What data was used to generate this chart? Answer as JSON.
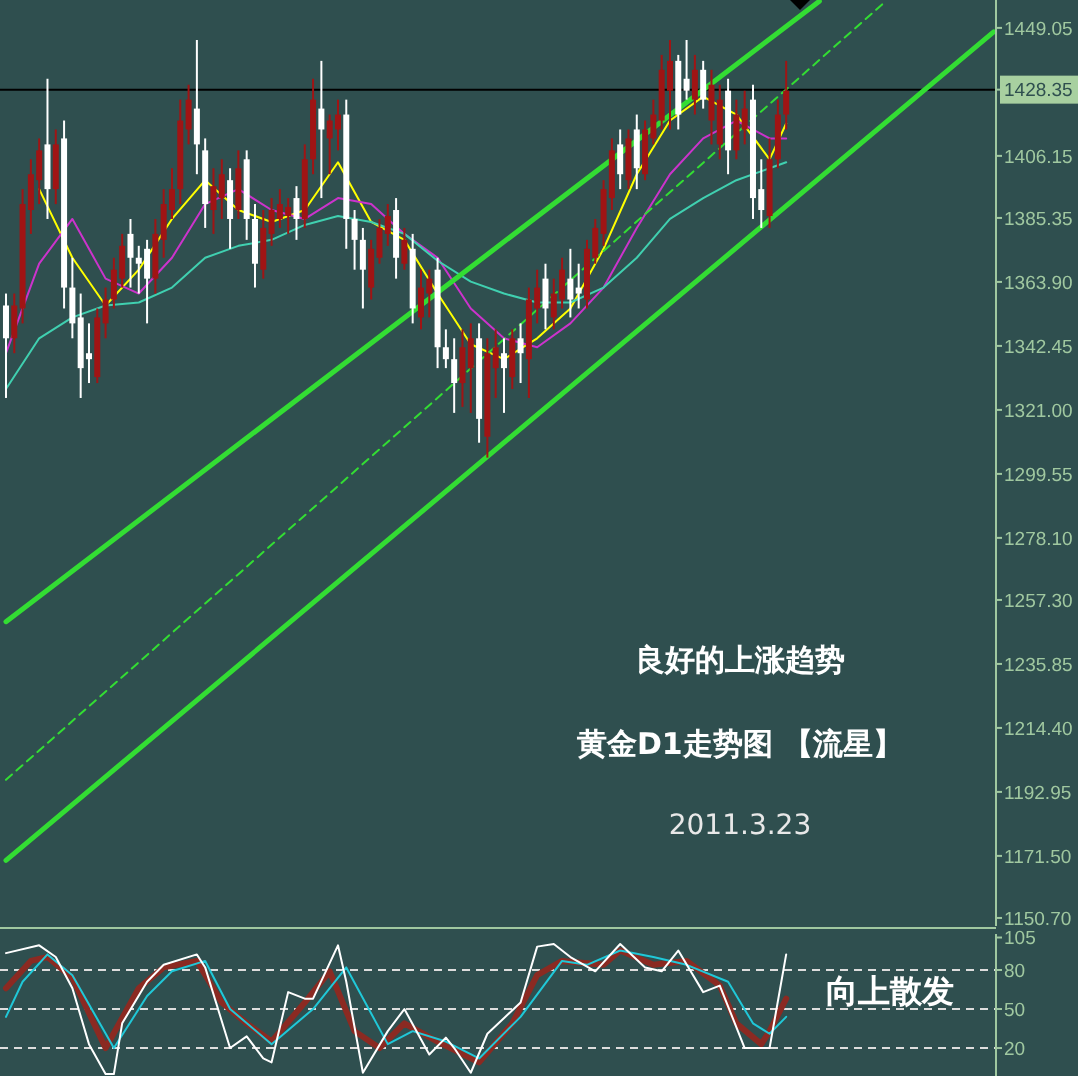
{
  "chart_data": [
    {
      "type": "candlestick",
      "tick_labels": "y",
      "colors": [
        "#ffffff",
        "#a01414",
        "#a01414",
        "#a01414",
        "#a01414",
        "#ffffff",
        "#a01414",
        "#ffffff",
        "#ffffff",
        "#ffffff",
        "#ffffff",
        "#a01414",
        "#a01414",
        "#a01414",
        "#a01414",
        "#ffffff",
        "#ffffff",
        "#ffffff",
        "#a01414",
        "#a01414",
        "#a01414",
        "#a01414",
        "#a01414",
        "#ffffff",
        "#ffffff",
        "#a01414",
        "#a01414",
        "#ffffff",
        "#a01414",
        "#ffffff",
        "#ffffff",
        "#a01414",
        "#a01414",
        "#a01414",
        "#a01414",
        "#ffffff",
        "#a01414",
        "#a01414",
        "#ffffff",
        "#a01414",
        "#a01414",
        "#ffffff",
        "#ffffff",
        "#ffffff",
        "#a01414",
        "#a01414",
        "#a01414",
        "#ffffff",
        "#a01414",
        "#ffffff",
        "#a01414",
        "#a01414",
        "#ffffff",
        "#ffffff",
        "#ffffff",
        "#a01414",
        "#a01414",
        "#ffffff",
        "#a01414",
        "#a01414",
        "#ffffff",
        "#a01414",
        "#ffffff",
        "#a01414",
        "#a01414",
        "#ffffff",
        "#a01414",
        "#a01414",
        "#ffffff",
        "#ffffff",
        "#a01414",
        "#a01414",
        "#a01414",
        "#a01414",
        "#ffffff",
        "#a01414",
        "#ffffff",
        "#a01414",
        "#a01414",
        "#a01414",
        "#a01414",
        "#ffffff",
        "#ffffff",
        "#a01414",
        "#ffffff",
        "#a01414",
        "#a01414",
        "#ffffff",
        "#a01414",
        "#a01414",
        "#ffffff",
        "#ffffff",
        "#a01414",
        "#a01414",
        "#a01414",
        null,
        null,
        null,
        null,
        null,
        null,
        null,
        null,
        null,
        null,
        null,
        null,
        null,
        null,
        null,
        null,
        null,
        null,
        null,
        null,
        null,
        null,
        null,
        null,
        null
      ],
      "categories": [
        null,
        null,
        null,
        null,
        null,
        null,
        null,
        null,
        null,
        null,
        null,
        null,
        null,
        null,
        null,
        null,
        null,
        null,
        null,
        null,
        null,
        null,
        null,
        null,
        null,
        null,
        null,
        null,
        null,
        null,
        null,
        null,
        null,
        null,
        null,
        null,
        null,
        null,
        null,
        null,
        null,
        null,
        null,
        null,
        null,
        null,
        null,
        null,
        null,
        null,
        null,
        null,
        null,
        null,
        null,
        null,
        null,
        null,
        null,
        null,
        null,
        null,
        null,
        null,
        null,
        null,
        null,
        null,
        null,
        null,
        null,
        null,
        null,
        null,
        null,
        null,
        null,
        null,
        null,
        null,
        null,
        null,
        null,
        null,
        null,
        null,
        null,
        null,
        null,
        null,
        null,
        null,
        null,
        null,
        null,
        null,
        null,
        null,
        null,
        null,
        null,
        null,
        null,
        null,
        null,
        null,
        null,
        null,
        null,
        null,
        null,
        null,
        null,
        null,
        null,
        null,
        null,
        null,
        null,
        null
      ],
      "ohlc": [
        [
          1356,
          1360,
          1325,
          1345
        ],
        [
          1345,
          1360,
          1340,
          1356
        ],
        [
          1355,
          1395,
          1350,
          1390
        ],
        [
          1388,
          1405,
          1380,
          1400
        ],
        [
          1398,
          1412,
          1390,
          1408
        ],
        [
          1410,
          1432,
          1385,
          1395
        ],
        [
          1395,
          1415,
          1390,
          1410
        ],
        [
          1412,
          1418,
          1355,
          1362
        ],
        [
          1362,
          1372,
          1345,
          1350
        ],
        [
          1352,
          1360,
          1325,
          1335
        ],
        [
          1340,
          1350,
          1330,
          1338
        ],
        [
          1332,
          1355,
          1330,
          1352
        ],
        [
          1350,
          1362,
          1345,
          1358
        ],
        [
          1358,
          1372,
          1355,
          1368
        ],
        [
          1365,
          1380,
          1362,
          1376
        ],
        [
          1380,
          1385,
          1362,
          1372
        ],
        [
          1372,
          1376,
          1360,
          1370
        ],
        [
          1375,
          1378,
          1350,
          1365
        ],
        [
          1365,
          1385,
          1360,
          1380
        ],
        [
          1378,
          1395,
          1372,
          1390
        ],
        [
          1388,
          1402,
          1385,
          1395
        ],
        [
          1395,
          1425,
          1390,
          1418
        ],
        [
          1415,
          1430,
          1410,
          1425
        ],
        [
          1422,
          1445,
          1400,
          1410
        ],
        [
          1408,
          1412,
          1382,
          1390
        ],
        [
          1388,
          1402,
          1380,
          1396
        ],
        [
          1392,
          1405,
          1385,
          1400
        ],
        [
          1398,
          1402,
          1375,
          1385
        ],
        [
          1388,
          1408,
          1385,
          1402
        ],
        [
          1405,
          1408,
          1378,
          1385
        ],
        [
          1385,
          1390,
          1362,
          1370
        ],
        [
          1368,
          1388,
          1365,
          1382
        ],
        [
          1380,
          1392,
          1376,
          1388
        ],
        [
          1385,
          1395,
          1382,
          1390
        ],
        [
          1386,
          1392,
          1380,
          1389
        ],
        [
          1392,
          1396,
          1378,
          1385
        ],
        [
          1385,
          1410,
          1382,
          1405
        ],
        [
          1405,
          1432,
          1400,
          1425
        ],
        [
          1422,
          1438,
          1392,
          1415
        ],
        [
          1412,
          1420,
          1400,
          1418
        ],
        [
          1415,
          1425,
          1408,
          1420
        ],
        [
          1420,
          1425,
          1375,
          1385
        ],
        [
          1385,
          1388,
          1368,
          1378
        ],
        [
          1378,
          1382,
          1355,
          1368
        ],
        [
          1362,
          1378,
          1358,
          1375
        ],
        [
          1372,
          1385,
          1370,
          1382
        ],
        [
          1380,
          1390,
          1376,
          1386
        ],
        [
          1388,
          1392,
          1365,
          1372
        ],
        [
          1370,
          1382,
          1368,
          1378
        ],
        [
          1375,
          1380,
          1350,
          1355
        ],
        [
          1352,
          1368,
          1348,
          1362
        ],
        [
          1360,
          1368,
          1352,
          1365
        ],
        [
          1368,
          1372,
          1335,
          1342
        ],
        [
          1342,
          1348,
          1335,
          1338
        ],
        [
          1338,
          1345,
          1320,
          1330
        ],
        [
          1330,
          1348,
          1322,
          1342
        ],
        [
          1335,
          1350,
          1320,
          1345
        ],
        [
          1345,
          1350,
          1310,
          1318
        ],
        [
          1312,
          1345,
          1305,
          1340
        ],
        [
          1335,
          1348,
          1325,
          1342
        ],
        [
          1340,
          1345,
          1320,
          1335
        ],
        [
          1332,
          1348,
          1328,
          1345
        ],
        [
          1345,
          1350,
          1330,
          1340
        ],
        [
          1338,
          1362,
          1325,
          1358
        ],
        [
          1355,
          1368,
          1350,
          1362
        ],
        [
          1365,
          1370,
          1348,
          1355
        ],
        [
          1352,
          1365,
          1348,
          1360
        ],
        [
          1358,
          1372,
          1355,
          1368
        ],
        [
          1365,
          1375,
          1352,
          1358
        ],
        [
          1362,
          1370,
          1355,
          1360
        ],
        [
          1358,
          1378,
          1355,
          1375
        ],
        [
          1372,
          1385,
          1370,
          1382
        ],
        [
          1380,
          1398,
          1376,
          1395
        ],
        [
          1392,
          1412,
          1388,
          1408
        ],
        [
          1410,
          1415,
          1395,
          1400
        ],
        [
          1398,
          1415,
          1395,
          1412
        ],
        [
          1415,
          1420,
          1395,
          1402
        ],
        [
          1400,
          1418,
          1398,
          1415
        ],
        [
          1412,
          1425,
          1410,
          1420
        ],
        [
          1418,
          1440,
          1415,
          1435
        ],
        [
          1428,
          1445,
          1415,
          1438
        ],
        [
          1438,
          1440,
          1415,
          1420
        ],
        [
          1432,
          1445,
          1425,
          1428
        ],
        [
          1425,
          1440,
          1420,
          1435
        ],
        [
          1435,
          1438,
          1422,
          1425
        ],
        [
          1418,
          1435,
          1410,
          1430
        ],
        [
          1410,
          1430,
          1405,
          1425
        ],
        [
          1428,
          1432,
          1400,
          1408
        ],
        [
          1408,
          1425,
          1405,
          1420
        ],
        [
          1415,
          1428,
          1410,
          1422
        ],
        [
          1425,
          1430,
          1385,
          1392
        ],
        [
          1395,
          1405,
          1382,
          1388
        ],
        [
          1386,
          1412,
          1382,
          1405
        ],
        [
          1405,
          1425,
          1402,
          1420
        ],
        [
          1420,
          1438,
          1415,
          1428
        ],
        null,
        null,
        null,
        null,
        null,
        null,
        null,
        null,
        null,
        null,
        null,
        null,
        null,
        null,
        null,
        null,
        null,
        null,
        null,
        null,
        null,
        null,
        null,
        null,
        null
      ],
      "ylim": [
        1148,
        1458.4
      ],
      "yticks": [
        1449.05,
        1428.35,
        1406.15,
        1385.35,
        {
          "value": 1363.9,
          "label": "1363.90"
        },
        1342.45,
        {
          "value": 1321,
          "label": "1321.00"
        },
        1299.55,
        {
          "value": 1278.1,
          "label": "1278.10"
        },
        {
          "value": 1257.3,
          "label": "1257.30"
        },
        1235.85,
        {
          "value": 1214.4,
          "label": "1214.40"
        },
        1192.95,
        {
          "value": 1171.5,
          "label": "1171.50"
        },
        {
          "value": 1150.7,
          "label": "1150.70"
        }
      ],
      "ref_lines": [
        {
          "axis": "y",
          "value": 1428.35,
          "label": "1428.35",
          "color": "#000000"
        }
      ],
      "annotations": [
        "良好的上涨趋势",
        "黄金D1走势图 【流星】",
        "2011.3.23"
      ],
      "series": [
        {
          "type": "line",
          "color": "#ffff00",
          "values": [
            null,
            null,
            null,
            null,
            1395,
            null,
            null,
            null,
            1372,
            null,
            null,
            null,
            1356,
            null,
            null,
            null,
            1368,
            null,
            null,
            null,
            1385,
            null,
            null,
            null,
            1398,
            null,
            null,
            null,
            1388,
            null,
            null,
            null,
            1384,
            null,
            null,
            null,
            1388,
            null,
            null,
            null,
            1404,
            null,
            null,
            null,
            1384,
            null,
            null,
            null,
            1378,
            null,
            null,
            null,
            1360,
            null,
            null,
            null,
            1343,
            null,
            null,
            null,
            1338,
            null,
            null,
            null,
            1345,
            null,
            null,
            null,
            1355,
            null,
            null,
            null,
            1375,
            null,
            null,
            null,
            1400,
            null,
            null,
            null,
            1418,
            null,
            null,
            null,
            1426,
            null,
            null,
            null,
            1420,
            null,
            null,
            null,
            1405,
            null,
            1417,
            null,
            null,
            null,
            null,
            null,
            null,
            null,
            null,
            null,
            null,
            null,
            null,
            null,
            null,
            null,
            null,
            null,
            null,
            null,
            null,
            null,
            null,
            null,
            null,
            null
          ]
        },
        {
          "type": "line",
          "color": "#cc33cc",
          "values": [
            1340,
            null,
            null,
            null,
            1370,
            null,
            null,
            null,
            1385,
            null,
            null,
            null,
            1365,
            null,
            null,
            null,
            1360,
            null,
            null,
            null,
            1372,
            null,
            null,
            null,
            1390,
            null,
            null,
            null,
            1395,
            null,
            null,
            null,
            1388,
            null,
            null,
            null,
            1385,
            null,
            null,
            null,
            1392,
            null,
            null,
            null,
            1390,
            null,
            null,
            null,
            1380,
            null,
            null,
            null,
            1372,
            null,
            null,
            null,
            1355,
            null,
            null,
            null,
            1345,
            null,
            null,
            null,
            1342,
            null,
            null,
            null,
            1350,
            null,
            null,
            null,
            1362,
            null,
            null,
            null,
            1382,
            null,
            null,
            null,
            1400,
            null,
            null,
            null,
            1412,
            null,
            null,
            null,
            1418,
            null,
            null,
            null,
            1412,
            null,
            1412,
            null,
            null,
            null,
            null,
            null,
            null,
            null,
            null,
            null,
            null,
            null,
            null,
            null,
            null,
            null,
            null,
            null,
            null,
            null,
            null,
            null,
            null,
            null,
            null,
            null
          ]
        },
        {
          "type": "line",
          "color": "#40d0b0",
          "values": [
            1328,
            null,
            null,
            null,
            1345,
            null,
            null,
            null,
            1352,
            null,
            null,
            null,
            1356,
            null,
            null,
            null,
            1357,
            null,
            null,
            null,
            1362,
            null,
            null,
            null,
            1372,
            null,
            null,
            null,
            1376,
            null,
            null,
            null,
            1378,
            null,
            null,
            null,
            1383,
            null,
            null,
            null,
            1386,
            null,
            null,
            null,
            1384,
            null,
            null,
            null,
            1380,
            null,
            null,
            null,
            1371,
            null,
            null,
            null,
            1364,
            null,
            null,
            null,
            1360,
            null,
            null,
            null,
            1357,
            null,
            null,
            null,
            1357,
            null,
            null,
            null,
            1362,
            null,
            null,
            null,
            1372,
            null,
            null,
            null,
            1385,
            null,
            null,
            null,
            1392,
            null,
            null,
            null,
            1398,
            null,
            null,
            null,
            1402,
            null,
            1404,
            null,
            null,
            null,
            null,
            null,
            null,
            null,
            null,
            null,
            null,
            null,
            null,
            null,
            null,
            null,
            null,
            null,
            null,
            null,
            null,
            null,
            null,
            null,
            null,
            null
          ]
        },
        {
          "type": "line",
          "color": "#33dd33",
          "values": [
            1250,
            null,
            null,
            null,
            null,
            null,
            null,
            null,
            null,
            null,
            null,
            null,
            null,
            null,
            null,
            null,
            null,
            null,
            null,
            null,
            null,
            null,
            null,
            null,
            null,
            null,
            null,
            null,
            null,
            null,
            null,
            null,
            null,
            null,
            null,
            null,
            null,
            null,
            null,
            null,
            null,
            null,
            null,
            null,
            null,
            null,
            null,
            null,
            null,
            null,
            null,
            null,
            null,
            null,
            null,
            null,
            null,
            null,
            null,
            null,
            null,
            null,
            null,
            null,
            null,
            null,
            null,
            null,
            null,
            null,
            null,
            null,
            null,
            null,
            null,
            null,
            null,
            null,
            null,
            null,
            null,
            null,
            null,
            null,
            null,
            null,
            null,
            null,
            null,
            null,
            null,
            null,
            null,
            null,
            null,
            null,
            null,
            null,
            1458,
            null,
            null,
            null,
            null,
            null,
            null,
            null,
            null,
            null,
            null,
            null,
            null,
            null,
            null,
            null,
            null,
            null,
            null,
            null,
            null,
            null
          ]
        },
        {
          "type": "line",
          "color": "#33dd33",
          "values": [
            1170,
            null,
            null,
            null,
            null,
            null,
            null,
            null,
            null,
            null,
            null,
            null,
            null,
            null,
            null,
            null,
            null,
            null,
            null,
            null,
            null,
            null,
            null,
            null,
            null,
            null,
            null,
            null,
            null,
            null,
            null,
            null,
            null,
            null,
            null,
            null,
            null,
            null,
            null,
            null,
            null,
            null,
            null,
            null,
            null,
            null,
            null,
            null,
            null,
            null,
            null,
            null,
            null,
            null,
            null,
            null,
            null,
            null,
            null,
            null,
            null,
            null,
            null,
            null,
            null,
            null,
            null,
            null,
            null,
            null,
            null,
            null,
            null,
            null,
            null,
            null,
            null,
            null,
            null,
            null,
            null,
            null,
            null,
            null,
            null,
            null,
            null,
            null,
            null,
            null,
            null,
            null,
            null,
            null,
            null,
            null,
            null,
            null,
            null,
            null,
            null,
            null,
            null,
            null,
            null,
            null,
            null,
            null,
            null,
            null,
            null,
            null,
            null,
            null,
            null,
            null,
            null,
            null,
            null,
            1447.7
          ]
        },
        {
          "type": "line",
          "color": "#33dd33",
          "line_style": "dashed",
          "values": [
            1197,
            null,
            null,
            null,
            null,
            null,
            null,
            null,
            null,
            null,
            null,
            null,
            null,
            null,
            null,
            null,
            null,
            null,
            null,
            null,
            null,
            null,
            null,
            null,
            null,
            null,
            null,
            null,
            null,
            null,
            null,
            null,
            null,
            null,
            null,
            null,
            null,
            null,
            null,
            null,
            null,
            null,
            null,
            null,
            null,
            null,
            null,
            null,
            null,
            null,
            null,
            null,
            null,
            null,
            null,
            null,
            null,
            null,
            null,
            null,
            null,
            null,
            null,
            null,
            null,
            null,
            null,
            null,
            null,
            null,
            null,
            null,
            null,
            null,
            null,
            null,
            null,
            null,
            null,
            null,
            null,
            null,
            null,
            null,
            null,
            null,
            null,
            null,
            null,
            null,
            null,
            null,
            null,
            null,
            null,
            null,
            null,
            null,
            null,
            null,
            null,
            null,
            null,
            null,
            null,
            null,
            1458,
            null,
            null,
            null,
            null,
            null,
            null,
            null,
            null,
            null,
            null,
            null,
            null,
            null
          ]
        }
      ]
    },
    {
      "type": "line",
      "tick_labels": "y",
      "categories": [
        null,
        null,
        null,
        null,
        null,
        null,
        null,
        null,
        null,
        null,
        null,
        null,
        null,
        null,
        null,
        null,
        null,
        null,
        null,
        null,
        null,
        null,
        null,
        null,
        null,
        null,
        null,
        null,
        null,
        null,
        null,
        null,
        null,
        null,
        null,
        null,
        null,
        null,
        null,
        null,
        null,
        null,
        null,
        null,
        null,
        null,
        null,
        null,
        null,
        null,
        null,
        null,
        null,
        null,
        null,
        null,
        null,
        null,
        null,
        null,
        null,
        null,
        null,
        null,
        null,
        null,
        null,
        null,
        null,
        null,
        null,
        null,
        null,
        null,
        null,
        null,
        null,
        null,
        null,
        null,
        null,
        null,
        null,
        null,
        null,
        null,
        null,
        null,
        null,
        null,
        null,
        null,
        null,
        null,
        null,
        null,
        null,
        null,
        null,
        null,
        null,
        null,
        null,
        null,
        null,
        null,
        null,
        null,
        null,
        null,
        null,
        null,
        null,
        null,
        null,
        null,
        null,
        null,
        null,
        null
      ],
      "ylim": [
        -1.5,
        107.7
      ],
      "yticks": [
        105,
        80,
        50,
        20
      ],
      "ref_lines": [
        {
          "axis": "y",
          "value": 80,
          "color": "#dddddd",
          "line_style": "dashed"
        },
        {
          "axis": "y",
          "value": 50,
          "color": "#dddddd",
          "line_style": "dashed"
        },
        {
          "axis": "y",
          "value": 20,
          "color": "#dddddd",
          "line_style": "dashed"
        }
      ],
      "annotations": [
        "向上散发"
      ],
      "series": [
        {
          "color": "#8b2a22",
          "values": [
            66,
            null,
            null,
            87,
            null,
            90,
            null,
            null,
            74,
            null,
            null,
            null,
            20,
            null,
            null,
            null,
            66,
            null,
            null,
            82,
            null,
            null,
            null,
            87,
            null,
            null,
            55,
            null,
            null,
            39,
            null,
            null,
            25,
            null,
            null,
            null,
            55,
            null,
            null,
            79,
            null,
            null,
            33,
            null,
            null,
            20,
            null,
            null,
            39,
            null,
            null,
            null,
            25,
            null,
            null,
            null,
            null,
            9,
            null,
            null,
            null,
            39,
            null,
            null,
            76,
            null,
            null,
            87,
            null,
            null,
            null,
            null,
            84,
            null,
            95,
            null,
            null,
            null,
            84,
            null,
            null,
            null,
            87,
            null,
            null,
            null,
            68,
            null,
            39,
            null,
            null,
            23,
            33,
            null,
            58,
            null,
            null,
            null,
            null,
            null,
            null,
            null,
            null,
            null,
            null,
            null,
            null,
            null,
            null,
            null,
            null,
            null,
            null,
            null,
            null,
            null,
            null,
            null,
            null,
            null
          ]
        },
        {
          "color": "#20c8d8",
          "values": [
            44,
            null,
            71,
            null,
            null,
            92,
            null,
            null,
            76,
            null,
            null,
            null,
            null,
            20,
            null,
            null,
            null,
            60,
            null,
            null,
            79,
            null,
            null,
            null,
            87,
            null,
            null,
            50,
            null,
            null,
            null,
            null,
            23,
            null,
            null,
            null,
            null,
            50,
            null,
            null,
            null,
            82,
            null,
            null,
            null,
            null,
            23,
            null,
            null,
            33,
            null,
            null,
            null,
            25,
            null,
            null,
            null,
            12,
            null,
            null,
            null,
            null,
            44,
            null,
            null,
            null,
            null,
            87,
            null,
            null,
            84,
            null,
            null,
            null,
            95,
            null,
            null,
            null,
            90,
            null,
            null,
            null,
            84,
            null,
            null,
            null,
            null,
            71,
            null,
            null,
            39,
            null,
            31,
            null,
            44,
            null,
            null,
            null,
            null,
            null,
            null,
            null,
            null,
            null,
            null,
            null,
            null,
            null,
            null,
            null,
            null,
            null,
            null,
            null,
            null,
            null,
            null,
            null,
            null,
            null
          ]
        },
        {
          "color": "#ffffff",
          "values": [
            93,
            null,
            null,
            null,
            99,
            null,
            90,
            null,
            66,
            null,
            23,
            null,
            0,
            0,
            39,
            null,
            null,
            71,
            null,
            84,
            null,
            null,
            null,
            92,
            82,
            null,
            null,
            20,
            null,
            29,
            null,
            12,
            9,
            null,
            63,
            null,
            58,
            58,
            null,
            null,
            99,
            71,
            null,
            1,
            null,
            null,
            33,
            null,
            50,
            null,
            null,
            15,
            null,
            28,
            20,
            null,
            1,
            null,
            31,
            null,
            null,
            null,
            55,
            null,
            98,
            null,
            100,
            null,
            90,
            null,
            null,
            79,
            null,
            null,
            100,
            null,
            null,
            82,
            null,
            79,
            null,
            95,
            null,
            null,
            63,
            null,
            68,
            null,
            null,
            20,
            null,
            null,
            20,
            null,
            92,
            null,
            null,
            null,
            null,
            null,
            null,
            null,
            null,
            null,
            null,
            null,
            null,
            null,
            null,
            null,
            null,
            null,
            null,
            null,
            null,
            null,
            null,
            null,
            null,
            null
          ]
        }
      ]
    }
  ]
}
